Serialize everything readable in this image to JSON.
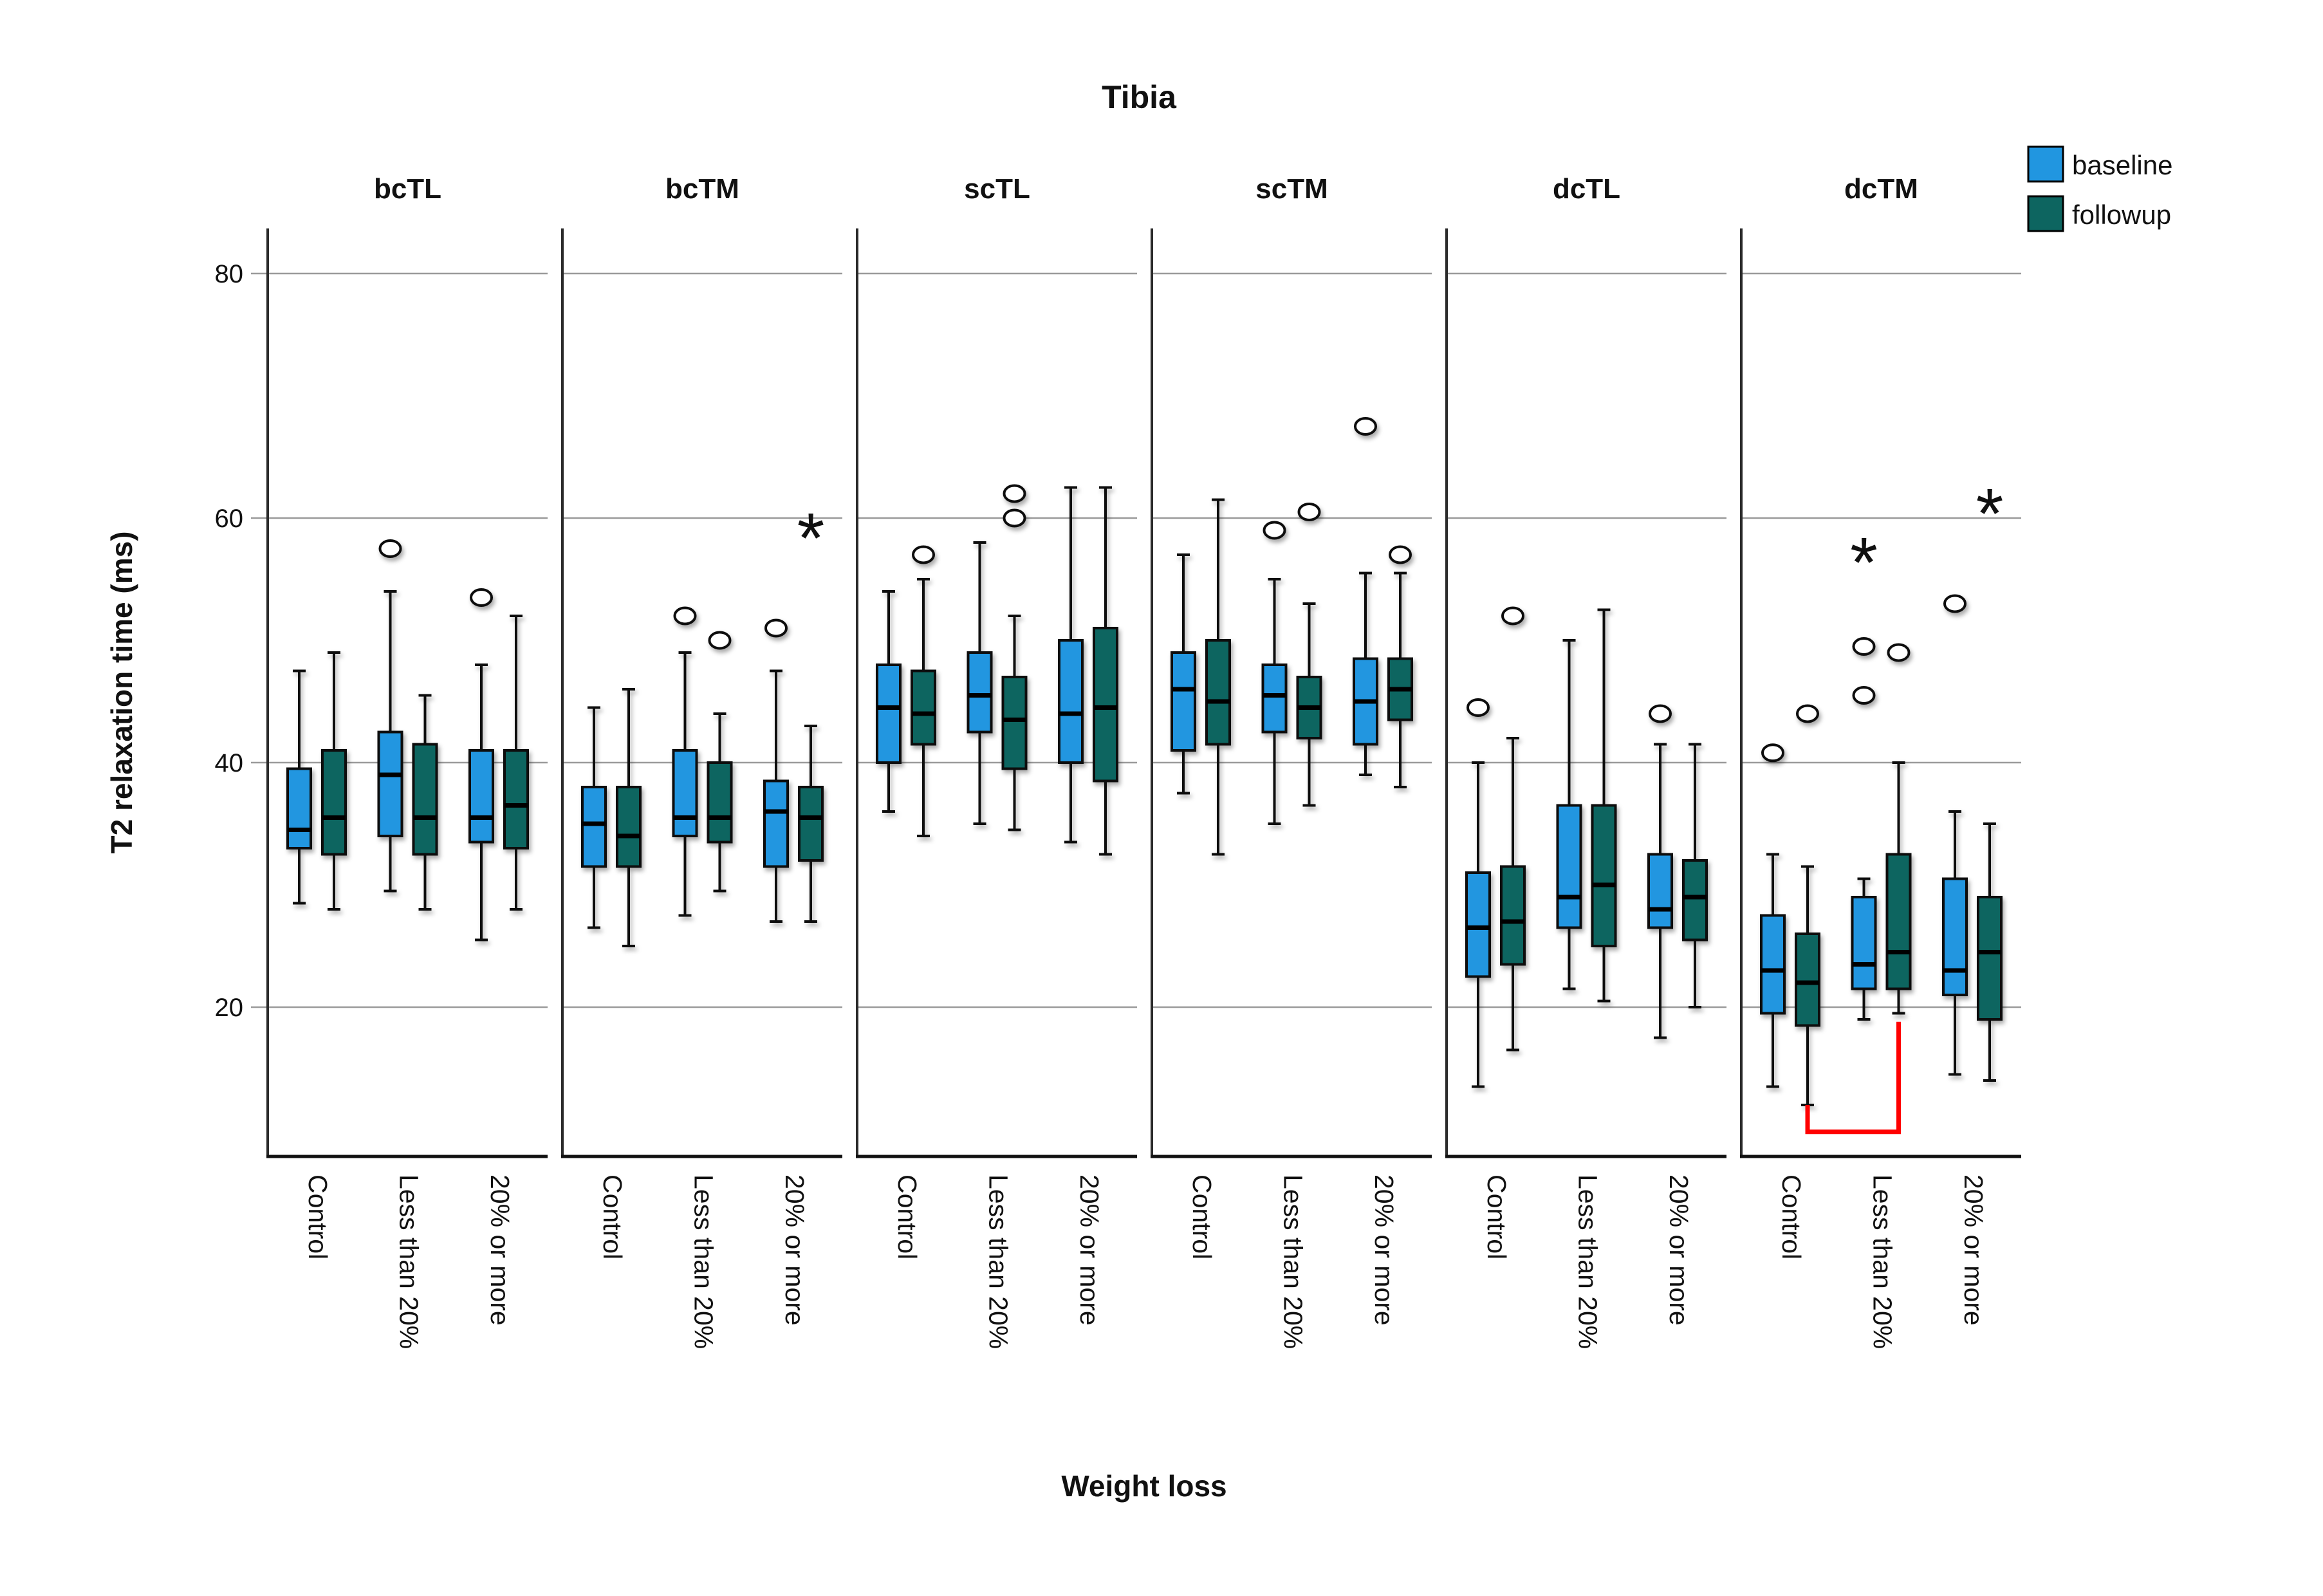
{
  "title": "Tibia",
  "y_axis": {
    "label": "T2 relaxation time (ms)",
    "ticks": [
      20,
      40,
      60,
      80
    ],
    "range": [
      7.8,
      83.5
    ]
  },
  "x_axis": {
    "label": "Weight loss",
    "categories": [
      "Control",
      "Less than 20%",
      "20% or more"
    ]
  },
  "legend": {
    "position": "top-right",
    "items": [
      {
        "label": "baseline",
        "color": "#2196E0"
      },
      {
        "label": "followup",
        "color": "#0D6560"
      }
    ]
  },
  "markers": {
    "outlier": "open-circle",
    "extreme": "asterisk"
  },
  "colors": {
    "baseline": "#2196E0",
    "followup": "#0D6560",
    "gridline": "#9a9a9a",
    "spine": "#2b2b2b",
    "axis": "#111111",
    "bracket": "#FF0000"
  },
  "chart_data": {
    "type": "grouped_boxplot",
    "series_names": [
      "baseline",
      "followup"
    ],
    "grid": true,
    "panels": [
      {
        "name": "bcTL",
        "groups": [
          {
            "category": "Control",
            "boxes": [
              {
                "series": "baseline",
                "low": 28.5,
                "q1": 33,
                "median": 34.5,
                "q3": 39.5,
                "high": 47.5,
                "outliers": [],
                "extremes": []
              },
              {
                "series": "followup",
                "low": 28,
                "q1": 32.5,
                "median": 35.5,
                "q3": 41,
                "high": 49,
                "outliers": [],
                "extremes": []
              }
            ]
          },
          {
            "category": "Less than 20%",
            "boxes": [
              {
                "series": "baseline",
                "low": 29.5,
                "q1": 34,
                "median": 39,
                "q3": 42.5,
                "high": 54,
                "outliers": [
                  57.5
                ],
                "extremes": []
              },
              {
                "series": "followup",
                "low": 28,
                "q1": 32.5,
                "median": 35.5,
                "q3": 41.5,
                "high": 45.5,
                "outliers": [],
                "extremes": []
              }
            ]
          },
          {
            "category": "20% or more",
            "boxes": [
              {
                "series": "baseline",
                "low": 25.5,
                "q1": 33.5,
                "median": 35.5,
                "q3": 41,
                "high": 48,
                "outliers": [
                  53.5
                ],
                "extremes": []
              },
              {
                "series": "followup",
                "low": 28,
                "q1": 33,
                "median": 36.5,
                "q3": 41,
                "high": 52,
                "outliers": [],
                "extremes": []
              }
            ]
          }
        ]
      },
      {
        "name": "bcTM",
        "groups": [
          {
            "category": "Control",
            "boxes": [
              {
                "series": "baseline",
                "low": 26.5,
                "q1": 31.5,
                "median": 35,
                "q3": 38,
                "high": 44.5,
                "outliers": [],
                "extremes": []
              },
              {
                "series": "followup",
                "low": 25,
                "q1": 31.5,
                "median": 34,
                "q3": 38,
                "high": 46,
                "outliers": [],
                "extremes": []
              }
            ]
          },
          {
            "category": "Less than 20%",
            "boxes": [
              {
                "series": "baseline",
                "low": 27.5,
                "q1": 34,
                "median": 35.5,
                "q3": 41,
                "high": 49,
                "outliers": [
                  52
                ],
                "extremes": []
              },
              {
                "series": "followup",
                "low": 29.5,
                "q1": 33.5,
                "median": 35.5,
                "q3": 40,
                "high": 44,
                "outliers": [
                  50
                ],
                "extremes": []
              }
            ]
          },
          {
            "category": "20% or more",
            "boxes": [
              {
                "series": "baseline",
                "low": 27,
                "q1": 31.5,
                "median": 36,
                "q3": 38.5,
                "high": 47.5,
                "outliers": [
                  51
                ],
                "extremes": []
              },
              {
                "series": "followup",
                "low": 27,
                "q1": 32,
                "median": 35.5,
                "q3": 38,
                "high": 43,
                "outliers": [],
                "extremes": [
                  59
                ]
              }
            ]
          }
        ]
      },
      {
        "name": "scTL",
        "groups": [
          {
            "category": "Control",
            "boxes": [
              {
                "series": "baseline",
                "low": 36,
                "q1": 40,
                "median": 44.5,
                "q3": 48,
                "high": 54,
                "outliers": [],
                "extremes": []
              },
              {
                "series": "followup",
                "low": 34,
                "q1": 41.5,
                "median": 44,
                "q3": 47.5,
                "high": 55,
                "outliers": [
                  57
                ],
                "extremes": []
              }
            ]
          },
          {
            "category": "Less than 20%",
            "boxes": [
              {
                "series": "baseline",
                "low": 35,
                "q1": 42.5,
                "median": 45.5,
                "q3": 49,
                "high": 58,
                "outliers": [],
                "extremes": []
              },
              {
                "series": "followup",
                "low": 34.5,
                "q1": 39.5,
                "median": 43.5,
                "q3": 47,
                "high": 52,
                "outliers": [
                  60,
                  62
                ],
                "extremes": []
              }
            ]
          },
          {
            "category": "20% or more",
            "boxes": [
              {
                "series": "baseline",
                "low": 33.5,
                "q1": 40,
                "median": 44,
                "q3": 50,
                "high": 62.5,
                "outliers": [],
                "extremes": []
              },
              {
                "series": "followup",
                "low": 32.5,
                "q1": 38.5,
                "median": 44.5,
                "q3": 51,
                "high": 62.5,
                "outliers": [],
                "extremes": []
              }
            ]
          }
        ]
      },
      {
        "name": "scTM",
        "groups": [
          {
            "category": "Control",
            "boxes": [
              {
                "series": "baseline",
                "low": 37.5,
                "q1": 41,
                "median": 46,
                "q3": 49,
                "high": 57,
                "outliers": [],
                "extremes": []
              },
              {
                "series": "followup",
                "low": 32.5,
                "q1": 41.5,
                "median": 45,
                "q3": 50,
                "high": 61.5,
                "outliers": [],
                "extremes": []
              }
            ]
          },
          {
            "category": "Less than 20%",
            "boxes": [
              {
                "series": "baseline",
                "low": 35,
                "q1": 42.5,
                "median": 45.5,
                "q3": 48,
                "high": 55,
                "outliers": [
                  59
                ],
                "extremes": []
              },
              {
                "series": "followup",
                "low": 36.5,
                "q1": 42,
                "median": 44.5,
                "q3": 47,
                "high": 53,
                "outliers": [
                  60.5
                ],
                "extremes": []
              }
            ]
          },
          {
            "category": "20% or more",
            "boxes": [
              {
                "series": "baseline",
                "low": 39,
                "q1": 41.5,
                "median": 45,
                "q3": 48.5,
                "high": 55.5,
                "outliers": [
                  67.5
                ],
                "extremes": []
              },
              {
                "series": "followup",
                "low": 38,
                "q1": 43.5,
                "median": 46,
                "q3": 48.5,
                "high": 55.5,
                "outliers": [
                  57
                ],
                "extremes": []
              }
            ]
          }
        ]
      },
      {
        "name": "dcTL",
        "groups": [
          {
            "category": "Control",
            "boxes": [
              {
                "series": "baseline",
                "low": 13.5,
                "q1": 22.5,
                "median": 26.5,
                "q3": 31,
                "high": 40,
                "outliers": [
                  44.5
                ],
                "extremes": []
              },
              {
                "series": "followup",
                "low": 16.5,
                "q1": 23.5,
                "median": 27,
                "q3": 31.5,
                "high": 42,
                "outliers": [
                  52
                ],
                "extremes": []
              }
            ]
          },
          {
            "category": "Less than 20%",
            "boxes": [
              {
                "series": "baseline",
                "low": 21.5,
                "q1": 26.5,
                "median": 29,
                "q3": 36.5,
                "high": 50,
                "outliers": [],
                "extremes": []
              },
              {
                "series": "followup",
                "low": 20.5,
                "q1": 25,
                "median": 30,
                "q3": 36.5,
                "high": 52.5,
                "outliers": [],
                "extremes": []
              }
            ]
          },
          {
            "category": "20% or more",
            "boxes": [
              {
                "series": "baseline",
                "low": 17.5,
                "q1": 26.5,
                "median": 28,
                "q3": 32.5,
                "high": 41.5,
                "outliers": [
                  44
                ],
                "extremes": []
              },
              {
                "series": "followup",
                "low": 20,
                "q1": 25.5,
                "median": 29,
                "q3": 32,
                "high": 41.5,
                "outliers": [],
                "extremes": []
              }
            ]
          }
        ]
      },
      {
        "name": "dcTM",
        "groups": [
          {
            "category": "Control",
            "boxes": [
              {
                "series": "baseline",
                "low": 13.5,
                "q1": 19.5,
                "median": 23,
                "q3": 27.5,
                "high": 32.5,
                "outliers": [
                  40.8
                ],
                "extremes": []
              },
              {
                "series": "followup",
                "low": 12,
                "q1": 18.5,
                "median": 22,
                "q3": 26,
                "high": 31.5,
                "outliers": [
                  44
                ],
                "extremes": []
              }
            ]
          },
          {
            "category": "Less than 20%",
            "boxes": [
              {
                "series": "baseline",
                "low": 19,
                "q1": 21.5,
                "median": 23.5,
                "q3": 29,
                "high": 30.5,
                "outliers": [
                  45.5,
                  49.5
                ],
                "extremes": [
                  57
                ]
              },
              {
                "series": "followup",
                "low": 19.5,
                "q1": 21.5,
                "median": 24.5,
                "q3": 32.5,
                "high": 40,
                "outliers": [
                  49
                ],
                "extremes": []
              }
            ]
          },
          {
            "category": "20% or more",
            "boxes": [
              {
                "series": "baseline",
                "low": 14.5,
                "q1": 21,
                "median": 23,
                "q3": 30.5,
                "high": 36,
                "outliers": [
                  53
                ],
                "extremes": []
              },
              {
                "series": "followup",
                "low": 14,
                "q1": 19,
                "median": 24.5,
                "q3": 29,
                "high": 35,
                "outliers": [],
                "extremes": [
                  61
                ]
              }
            ]
          }
        ]
      }
    ],
    "significance_bracket": {
      "panel": "dcTM",
      "from": {
        "category": "Control",
        "series": "followup"
      },
      "to": {
        "category": "Less than 20%",
        "series": "followup"
      },
      "bar_value": 9.8,
      "left_top_value": 12,
      "right_top_value": 18.8,
      "color": "#FF0000"
    }
  }
}
